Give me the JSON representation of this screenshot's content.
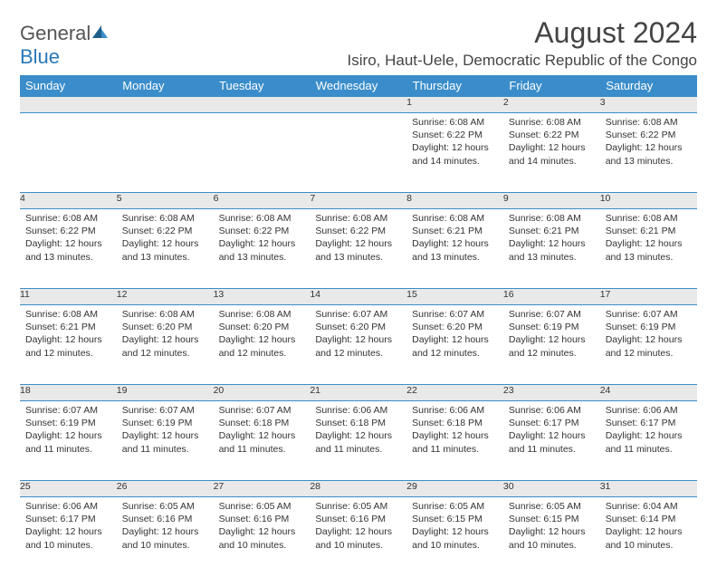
{
  "brand": {
    "name_a": "General",
    "name_b": "Blue"
  },
  "title": "August 2024",
  "location": "Isiro, Haut-Uele, Democratic Republic of the Congo",
  "colors": {
    "header_bg": "#3a8dca",
    "header_text": "#ffffff",
    "daynum_bg": "#e9e9e9",
    "border": "#3a8dca",
    "body_text": "#333333",
    "title_text": "#444444",
    "logo_gray": "#555555",
    "logo_blue": "#2a78b8",
    "page_bg": "#ffffff"
  },
  "typography": {
    "title_fontsize": 32,
    "location_fontsize": 17,
    "dayheader_fontsize": 13,
    "daynum_fontsize": 12,
    "cell_fontsize": 10.5,
    "logo_fontsize": 22
  },
  "day_headers": [
    "Sunday",
    "Monday",
    "Tuesday",
    "Wednesday",
    "Thursday",
    "Friday",
    "Saturday"
  ],
  "weeks": [
    {
      "nums": [
        "",
        "",
        "",
        "",
        "1",
        "2",
        "3"
      ],
      "cells": [
        null,
        null,
        null,
        null,
        {
          "sunrise": "6:08 AM",
          "sunset": "6:22 PM",
          "daylight": "12 hours and 14 minutes."
        },
        {
          "sunrise": "6:08 AM",
          "sunset": "6:22 PM",
          "daylight": "12 hours and 14 minutes."
        },
        {
          "sunrise": "6:08 AM",
          "sunset": "6:22 PM",
          "daylight": "12 hours and 13 minutes."
        }
      ]
    },
    {
      "nums": [
        "4",
        "5",
        "6",
        "7",
        "8",
        "9",
        "10"
      ],
      "cells": [
        {
          "sunrise": "6:08 AM",
          "sunset": "6:22 PM",
          "daylight": "12 hours and 13 minutes."
        },
        {
          "sunrise": "6:08 AM",
          "sunset": "6:22 PM",
          "daylight": "12 hours and 13 minutes."
        },
        {
          "sunrise": "6:08 AM",
          "sunset": "6:22 PM",
          "daylight": "12 hours and 13 minutes."
        },
        {
          "sunrise": "6:08 AM",
          "sunset": "6:22 PM",
          "daylight": "12 hours and 13 minutes."
        },
        {
          "sunrise": "6:08 AM",
          "sunset": "6:21 PM",
          "daylight": "12 hours and 13 minutes."
        },
        {
          "sunrise": "6:08 AM",
          "sunset": "6:21 PM",
          "daylight": "12 hours and 13 minutes."
        },
        {
          "sunrise": "6:08 AM",
          "sunset": "6:21 PM",
          "daylight": "12 hours and 13 minutes."
        }
      ]
    },
    {
      "nums": [
        "11",
        "12",
        "13",
        "14",
        "15",
        "16",
        "17"
      ],
      "cells": [
        {
          "sunrise": "6:08 AM",
          "sunset": "6:21 PM",
          "daylight": "12 hours and 12 minutes."
        },
        {
          "sunrise": "6:08 AM",
          "sunset": "6:20 PM",
          "daylight": "12 hours and 12 minutes."
        },
        {
          "sunrise": "6:08 AM",
          "sunset": "6:20 PM",
          "daylight": "12 hours and 12 minutes."
        },
        {
          "sunrise": "6:07 AM",
          "sunset": "6:20 PM",
          "daylight": "12 hours and 12 minutes."
        },
        {
          "sunrise": "6:07 AM",
          "sunset": "6:20 PM",
          "daylight": "12 hours and 12 minutes."
        },
        {
          "sunrise": "6:07 AM",
          "sunset": "6:19 PM",
          "daylight": "12 hours and 12 minutes."
        },
        {
          "sunrise": "6:07 AM",
          "sunset": "6:19 PM",
          "daylight": "12 hours and 12 minutes."
        }
      ]
    },
    {
      "nums": [
        "18",
        "19",
        "20",
        "21",
        "22",
        "23",
        "24"
      ],
      "cells": [
        {
          "sunrise": "6:07 AM",
          "sunset": "6:19 PM",
          "daylight": "12 hours and 11 minutes."
        },
        {
          "sunrise": "6:07 AM",
          "sunset": "6:19 PM",
          "daylight": "12 hours and 11 minutes."
        },
        {
          "sunrise": "6:07 AM",
          "sunset": "6:18 PM",
          "daylight": "12 hours and 11 minutes."
        },
        {
          "sunrise": "6:06 AM",
          "sunset": "6:18 PM",
          "daylight": "12 hours and 11 minutes."
        },
        {
          "sunrise": "6:06 AM",
          "sunset": "6:18 PM",
          "daylight": "12 hours and 11 minutes."
        },
        {
          "sunrise": "6:06 AM",
          "sunset": "6:17 PM",
          "daylight": "12 hours and 11 minutes."
        },
        {
          "sunrise": "6:06 AM",
          "sunset": "6:17 PM",
          "daylight": "12 hours and 11 minutes."
        }
      ]
    },
    {
      "nums": [
        "25",
        "26",
        "27",
        "28",
        "29",
        "30",
        "31"
      ],
      "cells": [
        {
          "sunrise": "6:06 AM",
          "sunset": "6:17 PM",
          "daylight": "12 hours and 10 minutes."
        },
        {
          "sunrise": "6:05 AM",
          "sunset": "6:16 PM",
          "daylight": "12 hours and 10 minutes."
        },
        {
          "sunrise": "6:05 AM",
          "sunset": "6:16 PM",
          "daylight": "12 hours and 10 minutes."
        },
        {
          "sunrise": "6:05 AM",
          "sunset": "6:16 PM",
          "daylight": "12 hours and 10 minutes."
        },
        {
          "sunrise": "6:05 AM",
          "sunset": "6:15 PM",
          "daylight": "12 hours and 10 minutes."
        },
        {
          "sunrise": "6:05 AM",
          "sunset": "6:15 PM",
          "daylight": "12 hours and 10 minutes."
        },
        {
          "sunrise": "6:04 AM",
          "sunset": "6:14 PM",
          "daylight": "12 hours and 10 minutes."
        }
      ]
    }
  ],
  "labels": {
    "sunrise": "Sunrise:",
    "sunset": "Sunset:",
    "daylight": "Daylight:"
  }
}
